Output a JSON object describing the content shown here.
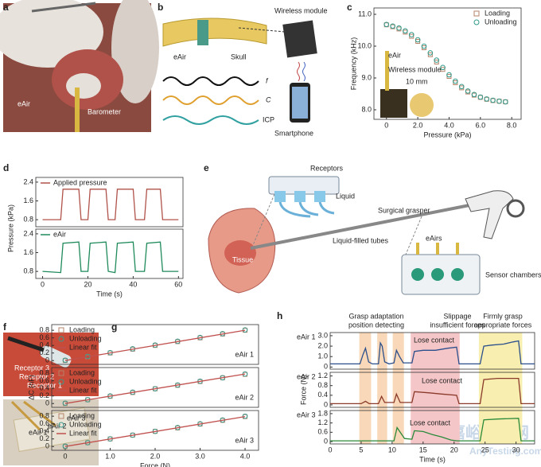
{
  "panel_letters": [
    "a",
    "b",
    "c",
    "d",
    "e",
    "f",
    "g",
    "h"
  ],
  "panels": {
    "a": {
      "texts": [
        "eAir",
        "Barometer"
      ]
    },
    "b": {
      "texts": [
        "Wireless module",
        "eAir",
        "Skull",
        "f",
        "C",
        "ICP",
        "Smartphone"
      ]
    },
    "e": {
      "texts": [
        "Receptors",
        "Liquid",
        "Surgical grasper",
        "Tissue",
        "Liquid-filled tubes",
        "eAirs",
        "Sensor chambers"
      ]
    },
    "f": {
      "texts": [
        "Receptor 3",
        "Receptor 2",
        "Receptor 1",
        "eAir 1",
        "eAir 2",
        "eAir 3"
      ]
    }
  },
  "watermark": [
    "嘉峪检测网",
    "AnyTesting.com"
  ],
  "chart_data": [
    {
      "type": "scatter",
      "xlabel": "Pressure (kPa)",
      "ylabel": "Frequency (kHz)",
      "x": [
        0,
        0.4,
        0.8,
        1.2,
        1.6,
        2.0,
        2.4,
        2.8,
        3.2,
        3.6,
        4.0,
        4.4,
        4.8,
        5.2,
        5.6,
        6.0,
        6.4,
        6.8,
        7.2,
        7.6
      ],
      "series": [
        {
          "name": "Loading",
          "color": "#b5836a",
          "marker": "square",
          "values": [
            10.67,
            10.61,
            10.54,
            10.44,
            10.31,
            10.15,
            9.95,
            9.73,
            9.5,
            9.27,
            9.05,
            8.85,
            8.69,
            8.56,
            8.46,
            8.39,
            8.33,
            8.29,
            8.27,
            8.25
          ]
        },
        {
          "name": "Unloading",
          "color": "#2f9a8a",
          "marker": "circle",
          "values": [
            10.68,
            10.63,
            10.57,
            10.48,
            10.36,
            10.2,
            10.0,
            9.79,
            9.56,
            9.33,
            9.1,
            8.9,
            8.73,
            8.59,
            8.48,
            8.4,
            8.34,
            8.3,
            8.27,
            8.25
          ]
        }
      ],
      "xlim": [
        -0.8,
        8.6
      ],
      "ylim": [
        7.7,
        11.2
      ],
      "xticks": [
        0,
        {
          "value": 2,
          "label": "2.0"
        },
        {
          "value": 4,
          "label": "4.0"
        },
        {
          "value": 6,
          "label": "6.0"
        },
        {
          "value": 8,
          "label": "8.0"
        }
      ],
      "yticks": [
        {
          "value": 8,
          "label": "8.0"
        },
        {
          "value": 9,
          "label": "9.0"
        },
        {
          "value": 10,
          "label": "10.0"
        },
        {
          "value": 11,
          "label": "11.0"
        }
      ],
      "legend": "upper right",
      "annotations": [
        {
          "text": "eAir"
        },
        {
          "text": "Wireless module"
        },
        {
          "text": "10 mm"
        }
      ]
    },
    {
      "type": "line",
      "ylabel": "Pressure (kPa)",
      "x": [
        0,
        8,
        9,
        16,
        17,
        20,
        21,
        28,
        29,
        32,
        33,
        40,
        41,
        45,
        46,
        52,
        53,
        60
      ],
      "series": [
        {
          "name": "Applied pressure",
          "color": "#b0524a",
          "values": [
            0.8,
            0.8,
            2.1,
            2.1,
            0.8,
            0.8,
            2.1,
            2.1,
            0.8,
            0.8,
            2.1,
            2.1,
            0.8,
            0.8,
            2.1,
            2.1,
            0.8,
            0.8
          ]
        }
      ],
      "xlim": [
        -3,
        62
      ],
      "ylim": [
        0.5,
        2.6
      ],
      "yticks": [
        0.8,
        1.6,
        2.4
      ],
      "legend": "upper left"
    },
    {
      "type": "line",
      "xlabel": "Time (s)",
      "x": [
        0,
        8,
        9,
        16,
        17,
        20,
        21,
        28,
        29,
        32,
        33,
        40,
        41,
        45,
        46,
        52,
        53,
        60
      ],
      "series": [
        {
          "name": "eAir",
          "color": "#1f8a5a",
          "values": [
            0.8,
            0.75,
            2.0,
            2.05,
            0.8,
            0.8,
            2.0,
            2.05,
            0.8,
            0.75,
            2.0,
            2.05,
            0.8,
            0.8,
            2.0,
            2.05,
            0.8,
            0.8
          ]
        }
      ],
      "xlim": [
        -3,
        62
      ],
      "ylim": [
        0.5,
        2.6
      ],
      "xticks": [
        0,
        20,
        40,
        60
      ],
      "yticks": [
        0.8,
        1.6,
        2.4
      ],
      "legend": "upper left"
    },
    {
      "type": "scatter",
      "label": "eAir 1",
      "x": [
        0,
        0.5,
        1,
        1.5,
        2,
        2.5,
        3,
        3.5,
        4
      ],
      "series": [
        {
          "name": "Loading",
          "color": "#b5836a",
          "marker": "square",
          "values": [
            0,
            0.1,
            0.2,
            0.3,
            0.4,
            0.5,
            0.6,
            0.7,
            0.8
          ]
        },
        {
          "name": "Unloading",
          "color": "#3a9a8e",
          "marker": "circle",
          "values": [
            0.01,
            0.11,
            0.21,
            0.31,
            0.41,
            0.51,
            0.61,
            0.71,
            0.81
          ]
        },
        {
          "name": "Linear fit",
          "color": "#c0504d",
          "marker": "line",
          "x": [
            0,
            4
          ],
          "values": [
            0,
            0.8
          ]
        }
      ],
      "xlim": [
        -0.3,
        4.3
      ],
      "ylim": [
        -0.1,
        0.95
      ],
      "yticks": [
        0,
        0.2,
        0.4,
        0.6,
        0.8
      ],
      "legend": "upper left"
    },
    {
      "type": "scatter",
      "label": "eAir 2",
      "ylabel": "ΔC (nF)",
      "x": [
        0,
        0.5,
        1,
        1.5,
        2,
        2.5,
        3,
        3.5,
        4
      ],
      "series": [
        {
          "name": "Loading",
          "color": "#b5836a",
          "marker": "square",
          "values": [
            0,
            0.1,
            0.19,
            0.29,
            0.39,
            0.48,
            0.58,
            0.68,
            0.77
          ]
        },
        {
          "name": "Unloading",
          "color": "#3a9a8e",
          "marker": "circle",
          "values": [
            0.01,
            0.1,
            0.2,
            0.3,
            0.39,
            0.49,
            0.59,
            0.68,
            0.78
          ]
        },
        {
          "name": "Linear fit",
          "color": "#c0504d",
          "marker": "line",
          "x": [
            0,
            4
          ],
          "values": [
            0,
            0.78
          ]
        }
      ],
      "xlim": [
        -0.3,
        4.3
      ],
      "ylim": [
        -0.1,
        0.95
      ],
      "yticks": [
        0,
        0.2,
        0.4,
        0.6,
        0.8
      ],
      "legend": "upper left"
    },
    {
      "type": "scatter",
      "label": "eAir 3",
      "xlabel": "Force (N)",
      "x": [
        0,
        0.5,
        1,
        1.5,
        2,
        2.5,
        3,
        3.5,
        4
      ],
      "series": [
        {
          "name": "Loading",
          "color": "#b5836a",
          "marker": "square",
          "values": [
            0,
            0.1,
            0.2,
            0.3,
            0.4,
            0.49,
            0.59,
            0.69,
            0.79
          ]
        },
        {
          "name": "Unloading",
          "color": "#3a9a8e",
          "marker": "circle",
          "values": [
            0.01,
            0.1,
            0.2,
            0.3,
            0.4,
            0.5,
            0.6,
            0.7,
            0.8
          ]
        },
        {
          "name": "Linear fit",
          "color": "#c0504d",
          "marker": "line",
          "x": [
            0,
            4
          ],
          "values": [
            0,
            0.79
          ]
        }
      ],
      "xlim": [
        -0.3,
        4.3
      ],
      "ylim": [
        -0.1,
        0.95
      ],
      "xticks": [
        0,
        {
          "value": 1,
          "label": "1.0"
        },
        {
          "value": 2,
          "label": "2.0"
        },
        {
          "value": 3,
          "label": "3.0"
        },
        {
          "value": 4,
          "label": "4.0"
        }
      ],
      "yticks": [
        0,
        0.2,
        0.4,
        0.6,
        0.8
      ],
      "legend": "upper left"
    },
    {
      "type": "line",
      "label": "eAir 1",
      "headers": [
        "Grasp adaptation",
        "position detecting",
        "Slippage",
        "insufficient forces",
        "Firmly grasp",
        "appropriate forces"
      ],
      "regions": [
        {
          "x": [
            4.7,
            6.6
          ],
          "color": "#f8d8b8"
        },
        {
          "x": [
            7.6,
            9.2
          ],
          "color": "#f8d8b8"
        },
        {
          "x": [
            10.1,
            11.9
          ],
          "color": "#f8d8b8"
        },
        {
          "x": [
            13,
            20.9
          ],
          "color": "#f5c6c8"
        },
        {
          "x": [
            24,
            31
          ],
          "color": "#f8eeb0"
        }
      ],
      "x": [
        0,
        4.8,
        5.3,
        5.7,
        6.2,
        6.8,
        7.8,
        8.1,
        8.4,
        8.8,
        9.5,
        10.3,
        10.7,
        11.2,
        11.8,
        13.2,
        13.6,
        15,
        17,
        19,
        20.4,
        20.8,
        24.2,
        24.8,
        26,
        28,
        29.5,
        30.4,
        30.8,
        33
      ],
      "series": [
        {
          "name": "eAir 1",
          "color": "#2b4f8c",
          "values": [
            0.3,
            0.3,
            1.2,
            1.8,
            0.5,
            0.3,
            0.3,
            2.3,
            2.0,
            0.5,
            0.3,
            0.4,
            1.6,
            1.0,
            0.4,
            0.4,
            1.5,
            1.6,
            1.6,
            1.8,
            1.9,
            0.3,
            0.3,
            2.0,
            2.1,
            2.2,
            2.4,
            2.5,
            0.3,
            0.3
          ]
        }
      ],
      "xlim": [
        0,
        33
      ],
      "ylim": [
        -0.2,
        3.3
      ],
      "yticks": [
        0,
        {
          "value": 1,
          "label": "1.0"
        },
        {
          "value": 2,
          "label": "2.0"
        },
        {
          "value": 3,
          "label": "3.0"
        }
      ],
      "annotations": [
        {
          "text": "Lose contact"
        }
      ]
    },
    {
      "type": "line",
      "label": "eAir 2",
      "ylabel": "Force (N)",
      "x": [
        0,
        5,
        5.7,
        6.3,
        7.8,
        8.3,
        8.8,
        10.3,
        10.7,
        11.3,
        13.2,
        13.6,
        16,
        18,
        20.4,
        20.8,
        24.2,
        24.8,
        27,
        30.4,
        30.8,
        33
      ],
      "series": [
        {
          "name": "eAir 2",
          "color": "#8a3a2a",
          "values": [
            0.05,
            0.05,
            0.15,
            0.05,
            0.05,
            0.35,
            0.1,
            0.1,
            0.45,
            0.1,
            0.1,
            0.55,
            0.5,
            0.45,
            0.4,
            0.05,
            0.05,
            1.05,
            1.1,
            1.1,
            0.05,
            0.05
          ]
        }
      ],
      "xlim": [
        0,
        33
      ],
      "ylim": [
        -0.1,
        1.35
      ],
      "yticks": [
        0,
        0.4,
        0.8,
        1.2
      ],
      "annotations": [
        {
          "text": "Lose contact"
        }
      ]
    },
    {
      "type": "line",
      "label": "eAir 3",
      "xlabel": "Time (s)",
      "x": [
        0,
        10.3,
        10.8,
        11.3,
        12,
        13.2,
        13.6,
        15,
        16.5,
        18,
        19.5,
        20.5,
        24.2,
        24.8,
        27,
        30.4,
        30.8,
        33
      ],
      "series": [
        {
          "name": "eAir 3",
          "color": "#2a8a3a",
          "values": [
            0.05,
            0.05,
            0.9,
            0.6,
            0.2,
            0.15,
            0.7,
            0.65,
            0.45,
            0.3,
            0.1,
            0.05,
            0.05,
            1.4,
            1.45,
            1.5,
            0.05,
            0.05
          ]
        }
      ],
      "xlim": [
        0,
        33
      ],
      "ylim": [
        -0.15,
        2.0
      ],
      "xticks": [
        0,
        5,
        10,
        15,
        20,
        25,
        30
      ],
      "yticks": [
        0,
        0.6,
        1.2,
        1.8
      ],
      "annotations": [
        {
          "text": "Lose contact"
        }
      ]
    }
  ]
}
